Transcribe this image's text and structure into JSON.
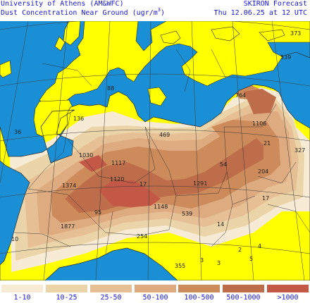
{
  "header": {
    "institution": "University of Athens (AM&WFC)",
    "product": "SKIRON Forecast",
    "variable": "Dust Concentration Near Ground (ugr/m",
    "unit_exponent": "3",
    "unit_close": ")",
    "valid_time": "Thu 12.06.25 at 12 UTC"
  },
  "colors": {
    "sea": "#1b8fd6",
    "land": "#ffff00",
    "text": "#1818d0",
    "grid": "#2f2f2f",
    "levels": [
      "#f7ebd5",
      "#ecd4a9",
      "#e6c094",
      "#deab80",
      "#cd8b5b",
      "#bd6d4a",
      "#c45847"
    ]
  },
  "legend": [
    {
      "label": "1-10"
    },
    {
      "label": "10-25"
    },
    {
      "label": "25-50"
    },
    {
      "label": "50-100"
    },
    {
      "label": "100-500"
    },
    {
      "label": "500-1000"
    },
    {
      "label": ">1000"
    }
  ],
  "map_values": [
    "373",
    "539",
    "88",
    "764",
    "136",
    "36",
    "1106",
    "469",
    "21",
    "327",
    "1030",
    "1117",
    "54",
    "204",
    "1120",
    "17",
    "1291",
    "1374",
    "17",
    "1148",
    "95",
    "539",
    "1877",
    "14",
    "254",
    "10",
    "2",
    "4",
    "5",
    "3",
    "3",
    "355"
  ]
}
